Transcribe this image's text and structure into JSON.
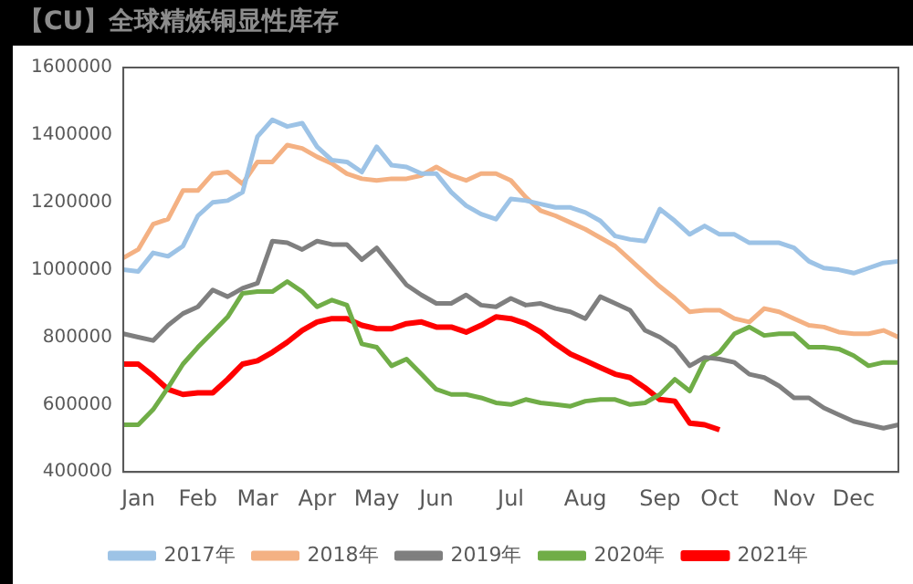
{
  "chart_data": {
    "type": "line",
    "title": "【CU】全球精炼铜显性库存",
    "categories": [
      null,
      "Jan",
      null,
      null,
      null,
      "Feb",
      null,
      null,
      null,
      "Mar",
      null,
      null,
      null,
      "Apr",
      null,
      null,
      null,
      "May",
      null,
      null,
      null,
      "Jun",
      null,
      null,
      null,
      null,
      "Jul",
      null,
      null,
      null,
      null,
      "Aug",
      null,
      null,
      null,
      null,
      "Sep",
      null,
      null,
      null,
      "Oct",
      null,
      null,
      null,
      null,
      "Nov",
      null,
      null,
      null,
      "Dec",
      null,
      null,
      null
    ],
    "series": [
      {
        "name": "2017年",
        "color": "#9dc3e6",
        "values": [
          1000000,
          995000,
          1050000,
          1040000,
          1070000,
          1160000,
          1200000,
          1205000,
          1230000,
          1395000,
          1445000,
          1425000,
          1435000,
          1365000,
          1325000,
          1320000,
          1290000,
          1365000,
          1310000,
          1305000,
          1285000,
          1285000,
          1230000,
          1190000,
          1165000,
          1150000,
          1210000,
          1205000,
          1195000,
          1185000,
          1185000,
          1170000,
          1145000,
          1100000,
          1090000,
          1085000,
          1180000,
          1145000,
          1105000,
          1130000,
          1105000,
          1105000,
          1080000,
          1080000,
          1080000,
          1065000,
          1025000,
          1005000,
          1000000,
          990000,
          1005000,
          1020000,
          1025000
        ]
      },
      {
        "name": "2018年",
        "color": "#f4b183",
        "values": [
          1035000,
          1060000,
          1135000,
          1150000,
          1235000,
          1235000,
          1285000,
          1290000,
          1255000,
          1320000,
          1320000,
          1370000,
          1360000,
          1335000,
          1315000,
          1285000,
          1270000,
          1265000,
          1270000,
          1270000,
          1280000,
          1305000,
          1280000,
          1265000,
          1285000,
          1285000,
          1265000,
          1215000,
          1175000,
          1160000,
          1140000,
          1120000,
          1095000,
          1070000,
          1030000,
          990000,
          950000,
          915000,
          875000,
          880000,
          880000,
          855000,
          845000,
          885000,
          875000,
          855000,
          835000,
          830000,
          815000,
          810000,
          810000,
          820000,
          800000
        ]
      },
      {
        "name": "2019年",
        "color": "#7f7f7f",
        "values": [
          810000,
          800000,
          790000,
          835000,
          870000,
          890000,
          940000,
          920000,
          945000,
          960000,
          1085000,
          1080000,
          1060000,
          1085000,
          1075000,
          1075000,
          1030000,
          1065000,
          1010000,
          955000,
          925000,
          900000,
          900000,
          925000,
          895000,
          890000,
          915000,
          895000,
          900000,
          885000,
          875000,
          855000,
          920000,
          900000,
          880000,
          820000,
          800000,
          770000,
          715000,
          740000,
          735000,
          725000,
          690000,
          680000,
          655000,
          620000,
          620000,
          590000,
          570000,
          550000,
          540000,
          530000,
          540000
        ]
      },
      {
        "name": "2020年",
        "color": "#70ad47",
        "values": [
          540000,
          540000,
          585000,
          650000,
          720000,
          770000,
          815000,
          860000,
          930000,
          935000,
          935000,
          965000,
          935000,
          890000,
          910000,
          895000,
          780000,
          770000,
          715000,
          735000,
          690000,
          645000,
          630000,
          630000,
          620000,
          605000,
          600000,
          615000,
          605000,
          600000,
          595000,
          610000,
          615000,
          615000,
          600000,
          605000,
          630000,
          675000,
          640000,
          730000,
          755000,
          810000,
          830000,
          805000,
          810000,
          810000,
          770000,
          770000,
          765000,
          745000,
          715000,
          725000,
          725000
        ]
      },
      {
        "name": "2021年",
        "color": "#ff0000",
        "values": [
          720000,
          720000,
          685000,
          645000,
          630000,
          635000,
          635000,
          675000,
          720000,
          730000,
          755000,
          785000,
          820000,
          845000,
          855000,
          855000,
          835000,
          825000,
          825000,
          840000,
          845000,
          830000,
          830000,
          815000,
          835000,
          860000,
          855000,
          840000,
          815000,
          780000,
          750000,
          730000,
          710000,
          690000,
          680000,
          650000,
          615000,
          610000,
          545000,
          540000,
          525000,
          null,
          null,
          null,
          null,
          null,
          null,
          null,
          null,
          null,
          null,
          null,
          null
        ]
      }
    ],
    "ylim": [
      400000,
      1600000
    ],
    "yticks": [
      400000,
      600000,
      800000,
      1000000,
      1200000,
      1400000,
      1600000
    ],
    "grid": false,
    "legend": "bottom",
    "marker": "none",
    "line_style": "solid"
  }
}
